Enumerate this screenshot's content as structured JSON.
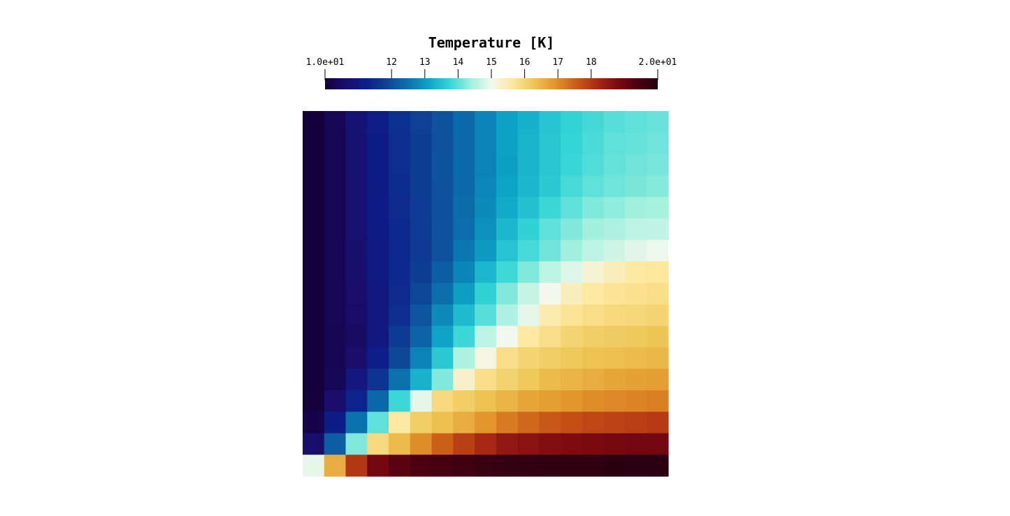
{
  "chart_data": {
    "type": "heatmap",
    "colorbar": {
      "title": "Temperature [K]",
      "range": [
        10,
        20
      ],
      "tick_labels": [
        {
          "value": 10,
          "label": "1.0e+01"
        },
        {
          "value": 12,
          "label": "12"
        },
        {
          "value": 13,
          "label": "13"
        },
        {
          "value": 14,
          "label": "14"
        },
        {
          "value": 15,
          "label": "15"
        },
        {
          "value": 16,
          "label": "16"
        },
        {
          "value": 17,
          "label": "17"
        },
        {
          "value": 18,
          "label": "18"
        },
        {
          "value": 20,
          "label": "2.0e+01"
        }
      ],
      "colormap": [
        "#13003a",
        "#1a0e6e",
        "#0c1f8c",
        "#0f4596",
        "#0a73ae",
        "#0ea4c7",
        "#35d5d7",
        "#9ef0dc",
        "#f3f7ee",
        "#fde89e",
        "#eec656",
        "#e3982e",
        "#cd6018",
        "#ad2c14",
        "#7f0a10",
        "#4e0012",
        "#250010"
      ],
      "position": "top"
    },
    "grid_rows": 17,
    "grid_cols": 17,
    "values": [
      [
        10.0,
        10.33,
        10.8,
        11.18,
        11.54,
        11.79,
        12.07,
        12.39,
        12.71,
        13.09,
        13.29,
        13.53,
        13.71,
        13.84,
        13.94,
        14.0,
        14.06
      ],
      [
        10.0,
        10.33,
        10.75,
        11.15,
        11.5,
        11.76,
        12.04,
        12.38,
        12.71,
        13.09,
        13.32,
        13.56,
        13.74,
        13.88,
        14.0,
        14.05,
        14.1
      ],
      [
        10.0,
        10.33,
        10.75,
        11.15,
        11.5,
        11.76,
        12.06,
        12.38,
        12.71,
        13.06,
        13.31,
        13.56,
        13.78,
        13.91,
        14.03,
        14.1,
        14.15
      ],
      [
        10.0,
        10.33,
        10.73,
        11.13,
        11.47,
        11.75,
        12.05,
        12.38,
        12.74,
        13.12,
        13.36,
        13.6,
        13.86,
        14.0,
        14.09,
        14.16,
        14.23
      ],
      [
        10.0,
        10.33,
        10.72,
        11.12,
        11.45,
        11.73,
        12.03,
        12.4,
        12.8,
        13.2,
        13.5,
        13.8,
        14.0,
        14.2,
        14.3,
        14.4,
        14.45
      ],
      [
        10.0,
        10.33,
        10.7,
        11.1,
        11.42,
        11.72,
        12.04,
        12.42,
        12.87,
        13.35,
        13.7,
        14.0,
        14.2,
        14.4,
        14.5,
        14.6,
        14.62
      ],
      [
        10.0,
        10.33,
        10.65,
        11.07,
        11.4,
        11.7,
        12.05,
        12.55,
        13.0,
        13.52,
        13.86,
        14.1,
        14.4,
        14.6,
        14.73,
        14.87,
        14.96
      ],
      [
        10.0,
        10.33,
        10.63,
        11.05,
        11.4,
        11.75,
        12.2,
        12.72,
        13.36,
        13.81,
        14.2,
        14.6,
        14.82,
        15.2,
        15.4,
        15.6,
        15.65
      ],
      [
        10.0,
        10.33,
        10.6,
        11.0,
        11.45,
        11.9,
        12.43,
        13.05,
        13.7,
        14.2,
        14.66,
        15.0,
        15.4,
        15.6,
        15.7,
        15.75,
        15.8
      ],
      [
        10.0,
        10.32,
        10.55,
        11.0,
        11.5,
        12.1,
        12.8,
        13.4,
        13.95,
        14.5,
        14.9,
        15.5,
        15.7,
        15.8,
        15.9,
        15.95,
        16.0
      ],
      [
        10.0,
        10.3,
        10.5,
        11.0,
        11.7,
        12.3,
        13.1,
        13.8,
        14.6,
        15.0,
        15.6,
        15.8,
        16.0,
        16.1,
        16.15,
        16.2,
        16.25
      ],
      [
        10.0,
        10.3,
        10.6,
        11.2,
        11.9,
        12.7,
        13.6,
        14.5,
        15.1,
        15.8,
        16.0,
        16.1,
        16.2,
        16.3,
        16.35,
        16.4,
        16.45
      ],
      [
        10.0,
        10.35,
        11.0,
        11.6,
        12.5,
        13.3,
        14.2,
        15.3,
        15.8,
        16.05,
        16.2,
        16.4,
        16.5,
        16.6,
        16.7,
        16.75,
        16.8
      ],
      [
        10.05,
        10.6,
        11.3,
        12.35,
        13.8,
        14.9,
        15.9,
        16.1,
        16.3,
        16.5,
        16.7,
        16.8,
        16.9,
        17.0,
        17.05,
        17.1,
        17.15
      ],
      [
        10.2,
        11.15,
        12.5,
        14.0,
        15.6,
        16.1,
        16.35,
        16.6,
        16.9,
        17.2,
        17.4,
        17.6,
        17.7,
        17.8,
        17.85,
        17.9,
        17.95
      ],
      [
        10.6,
        12.2,
        14.2,
        15.9,
        16.4,
        17.0,
        17.5,
        17.9,
        18.2,
        18.5,
        18.6,
        18.7,
        18.75,
        18.8,
        18.85,
        18.9,
        18.92
      ],
      [
        14.9,
        16.6,
        18.0,
        18.9,
        19.2,
        19.4,
        19.5,
        19.6,
        19.7,
        19.75,
        19.8,
        19.82,
        19.85,
        19.87,
        19.88,
        19.9,
        19.92
      ]
    ]
  }
}
